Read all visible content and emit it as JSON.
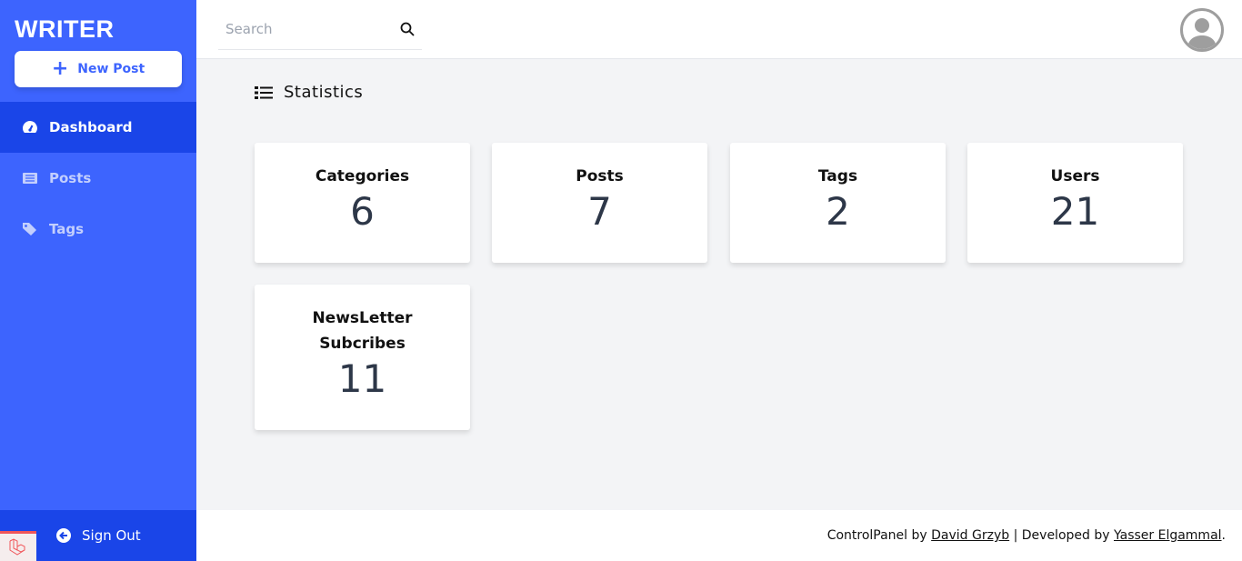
{
  "sidebar": {
    "brand": "WRITER",
    "new_post": "New Post",
    "items": [
      {
        "label": "Dashboard",
        "icon": "tachometer-icon",
        "active": true
      },
      {
        "label": "Posts",
        "icon": "newspaper-icon",
        "active": false
      },
      {
        "label": "Tags",
        "icon": "tag-icon",
        "active": false
      }
    ],
    "sign_out": "Sign Out"
  },
  "header": {
    "search_placeholder": "Search"
  },
  "main": {
    "title": "Statistics",
    "cards": [
      {
        "label": "Categories",
        "value": "6"
      },
      {
        "label": "Posts",
        "value": "7"
      },
      {
        "label": "Tags",
        "value": "2"
      },
      {
        "label": "Users",
        "value": "21"
      },
      {
        "label": "NewsLetter Subcribes",
        "value": "11"
      }
    ]
  },
  "footer": {
    "prefix": "ControlPanel by ",
    "author1": "David Grzyb",
    "middle": " | Developed by ",
    "author2": "Yasser Elgammal",
    "suffix": "."
  },
  "colors": {
    "sidebar": "#3d64fe",
    "active": "#1a45e8",
    "background": "#f3f4f6"
  }
}
